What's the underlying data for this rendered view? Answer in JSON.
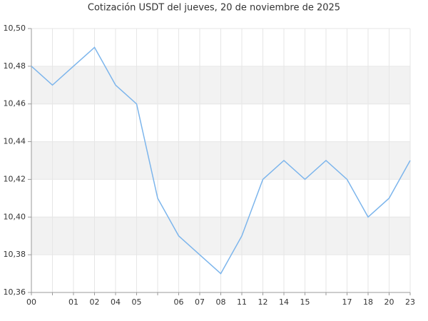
{
  "chart_data": {
    "type": "line",
    "title": "Cotización USDT del jueves, 20 de noviembre de 2025",
    "categories": [
      "00",
      null,
      "01",
      "02",
      "04",
      "05",
      null,
      "06",
      "07",
      "08",
      "11",
      "12",
      "14",
      "15",
      null,
      "17",
      "18",
      "20",
      "23"
    ],
    "series": [
      {
        "color": "#7cb5ec",
        "values": [
          10.48,
          10.47,
          10.48,
          10.49,
          10.47,
          10.46,
          10.41,
          10.39,
          10.38,
          10.37,
          10.39,
          10.42,
          10.43,
          10.42,
          10.43,
          10.42,
          10.4,
          10.41,
          10.43
        ]
      }
    ],
    "ylim": [
      10.36,
      10.5
    ],
    "yticks": [
      {
        "value": 10.36,
        "label": "10,36"
      },
      {
        "value": 10.38,
        "label": "10,38"
      },
      {
        "value": 10.4,
        "label": "10,40"
      },
      {
        "value": 10.42,
        "label": "10,42"
      },
      {
        "value": 10.44,
        "label": "10,44"
      },
      {
        "value": 10.46,
        "label": "10,46"
      },
      {
        "value": 10.48,
        "label": "10,48"
      },
      {
        "value": 10.5,
        "label": "10,50"
      }
    ],
    "grid": true,
    "bands": true
  }
}
